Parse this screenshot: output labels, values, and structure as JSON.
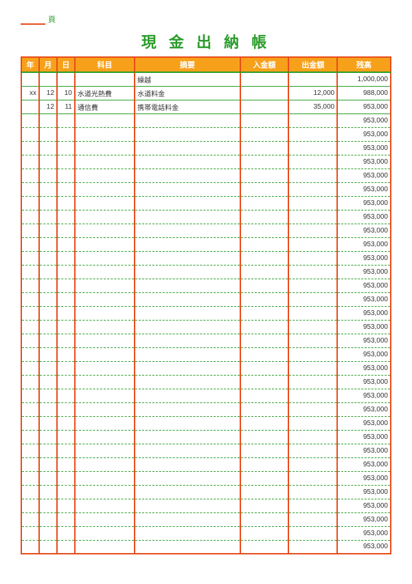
{
  "page_label": "頁",
  "title": "現 金 出 納 帳",
  "columns": {
    "year": "年",
    "month": "月",
    "day": "日",
    "category": "科目",
    "description": "摘要",
    "income": "入金額",
    "expense": "出金額",
    "balance": "残高"
  },
  "rows": [
    {
      "year": "",
      "month": "",
      "day": "",
      "category": "",
      "description": "繰越",
      "income": "",
      "expense": "",
      "balance": "1,000,000"
    },
    {
      "year": "xx",
      "month": "12",
      "day": "10",
      "category": "水道光熱費",
      "description": "水道料金",
      "income": "",
      "expense": "12,000",
      "balance": "988,000"
    },
    {
      "year": "",
      "month": "12",
      "day": "11",
      "category": "通信費",
      "description": "携帯電話料金",
      "income": "",
      "expense": "35,000",
      "balance": "953,000"
    }
  ],
  "default_balance": "953,000",
  "empty_row_count": 32,
  "colors": {
    "border_red": "#e84c1a",
    "line_green": "#2a9c2a",
    "header_bg": "#f7a11b",
    "header_text": "#ffffff"
  }
}
